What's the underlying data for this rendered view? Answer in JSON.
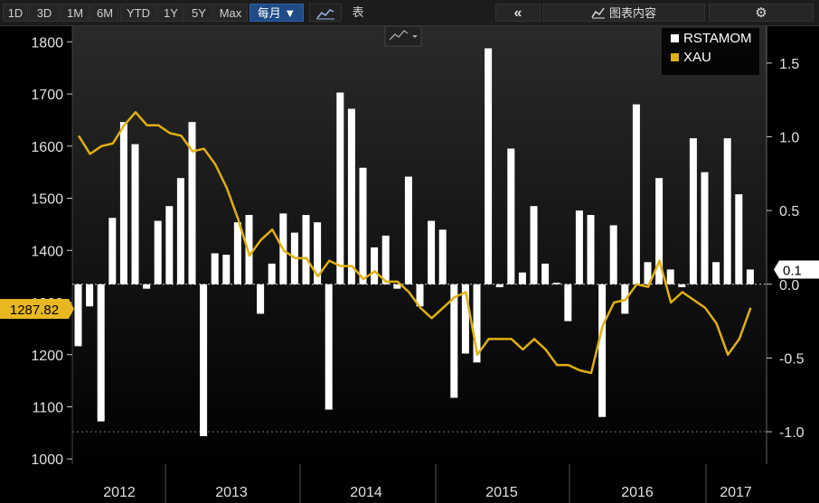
{
  "toolbar": {
    "ranges": [
      "1D",
      "3D",
      "1M",
      "6M",
      "YTD",
      "1Y",
      "5Y",
      "Max"
    ],
    "period_label": "每月 ▼",
    "table_label": "表",
    "collapse_icon": "double-chevron-left-icon",
    "chart_content_label": "图表内容",
    "settings_icon": "gear-icon"
  },
  "chart_data": {
    "type": "bar+line",
    "legend": [
      "RSTAMOM",
      "XAU"
    ],
    "legend_position": "top-right",
    "colors": {
      "RSTAMOM": "#ffffff",
      "XAU": "#e0b012",
      "background": "#000000"
    },
    "left_axis": {
      "ticks": [
        1000,
        1100,
        1200,
        1300,
        1400,
        1500,
        1600,
        1700,
        1800
      ],
      "range": [
        990,
        1830
      ]
    },
    "right_axis": {
      "ticks": [
        "1.5",
        "1.0",
        "0.5",
        "0.0",
        "-0.5",
        "-1.0"
      ],
      "tick_values": [
        1.5,
        1.0,
        0.5,
        0.0,
        -0.5,
        -1.0
      ],
      "range": [
        -1.22,
        1.75
      ]
    },
    "x_axis": {
      "years": [
        "2012",
        "2013",
        "2014",
        "2015",
        "2016",
        "2017"
      ]
    },
    "current_labels": {
      "xau": "1287.82",
      "rstamom": "0.1"
    },
    "series": [
      {
        "name": "RSTAMOM",
        "axis": "right",
        "values": [
          -0.42,
          -0.15,
          -0.93,
          0.45,
          1.1,
          0.95,
          -0.03,
          0.43,
          0.53,
          0.72,
          1.1,
          -1.03,
          0.21,
          0.2,
          0.42,
          0.47,
          -0.2,
          0.14,
          0.48,
          0.35,
          0.47,
          0.42,
          -0.85,
          1.3,
          1.19,
          0.79,
          0.25,
          0.33,
          -0.03,
          0.73,
          -0.15,
          0.43,
          0.37,
          -0.77,
          -0.47,
          -0.53,
          1.6,
          -0.02,
          0.92,
          0.08,
          0.53,
          0.14,
          0.01,
          -0.25,
          0.5,
          0.47,
          -0.9,
          0.4,
          -0.2,
          1.22,
          0.15,
          0.72,
          0.1,
          -0.02,
          0.99,
          0.76,
          0.15,
          0.99,
          0.61,
          0.1
        ]
      },
      {
        "name": "XAU",
        "axis": "left",
        "values": [
          1620,
          1585,
          1600,
          1605,
          1640,
          1665,
          1640,
          1640,
          1625,
          1620,
          1590,
          1595,
          1565,
          1520,
          1460,
          1390,
          1420,
          1440,
          1400,
          1385,
          1385,
          1350,
          1380,
          1370,
          1370,
          1345,
          1360,
          1340,
          1340,
          1320,
          1290,
          1270,
          1290,
          1310,
          1320,
          1200,
          1230,
          1230,
          1230,
          1210,
          1230,
          1210,
          1180,
          1180,
          1170,
          1165,
          1255,
          1300,
          1305,
          1335,
          1330,
          1380,
          1300,
          1320,
          1305,
          1290,
          1260,
          1200,
          1230,
          1290
        ]
      }
    ]
  }
}
